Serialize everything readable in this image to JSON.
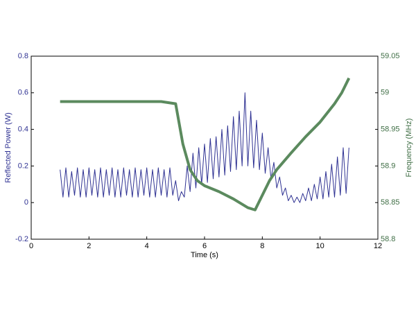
{
  "chart_data": {
    "type": "line",
    "xlabel": "Time (s)",
    "ylabel": "Reflected Power (W)",
    "y2label": "Frequency (MHz)",
    "xlim": [
      0,
      12
    ],
    "xticks": [
      0,
      2,
      4,
      6,
      8,
      10,
      12
    ],
    "ylim": [
      -0.2,
      0.8
    ],
    "yticks": [
      -0.2,
      0,
      0.2,
      0.4,
      0.6,
      0.8
    ],
    "y2lim": [
      58.8,
      59.05
    ],
    "y2ticks": [
      58.8,
      58.85,
      58.9,
      58.95,
      59,
      59.05
    ],
    "series": [
      {
        "color": "#2e3192",
        "x": [
          1.0,
          1.1,
          1.2,
          1.3,
          1.4,
          1.5,
          1.6,
          1.7,
          1.8,
          1.9,
          2.0,
          2.1,
          2.2,
          2.3,
          2.4,
          2.5,
          2.6,
          2.7,
          2.8,
          2.9,
          3.0,
          3.1,
          3.2,
          3.3,
          3.4,
          3.5,
          3.6,
          3.7,
          3.8,
          3.9,
          4.0,
          4.1,
          4.2,
          4.3,
          4.4,
          4.5,
          4.6,
          4.7,
          4.8,
          4.9,
          5.0,
          5.1,
          5.2,
          5.3,
          5.4,
          5.5,
          5.6,
          5.7,
          5.8,
          5.9,
          6.0,
          6.1,
          6.2,
          6.3,
          6.4,
          6.5,
          6.6,
          6.7,
          6.8,
          6.9,
          7.0,
          7.1,
          7.2,
          7.3,
          7.4,
          7.5,
          7.6,
          7.7,
          7.8,
          7.9,
          8.0,
          8.1,
          8.2,
          8.3,
          8.4,
          8.5,
          8.6,
          8.7,
          8.8,
          8.9,
          9.0,
          9.1,
          9.2,
          9.3,
          9.4,
          9.5,
          9.6,
          9.7,
          9.8,
          9.9,
          10.0,
          10.1,
          10.2,
          10.3,
          10.4,
          10.5,
          10.6,
          10.7,
          10.8,
          10.9,
          11.0
        ],
        "values": [
          0.18,
          0.03,
          0.19,
          0.03,
          0.17,
          0.04,
          0.19,
          0.03,
          0.18,
          0.03,
          0.19,
          0.04,
          0.18,
          0.03,
          0.19,
          0.03,
          0.18,
          0.04,
          0.19,
          0.03,
          0.18,
          0.03,
          0.19,
          0.04,
          0.18,
          0.03,
          0.19,
          0.03,
          0.18,
          0.04,
          0.19,
          0.03,
          0.18,
          0.03,
          0.19,
          0.04,
          0.18,
          0.03,
          0.19,
          0.04,
          0.12,
          0.01,
          0.06,
          0.03,
          0.2,
          0.06,
          0.27,
          0.08,
          0.3,
          0.1,
          0.32,
          0.11,
          0.35,
          0.13,
          0.36,
          0.14,
          0.4,
          0.15,
          0.42,
          0.17,
          0.47,
          0.18,
          0.5,
          0.2,
          0.6,
          0.2,
          0.5,
          0.19,
          0.45,
          0.18,
          0.38,
          0.16,
          0.3,
          0.13,
          0.22,
          0.08,
          0.14,
          0.04,
          0.08,
          0.01,
          0.04,
          0.0,
          0.03,
          0.0,
          0.05,
          0.01,
          0.08,
          0.01,
          0.1,
          0.02,
          0.14,
          0.02,
          0.17,
          0.03,
          0.21,
          0.03,
          0.25,
          0.04,
          0.3,
          0.05,
          0.3
        ]
      },
      {
        "color": "#5b8a5e",
        "axis": "y2",
        "x": [
          1,
          1.5,
          2,
          2.5,
          3,
          3.5,
          4,
          4.5,
          5,
          5.25,
          5.5,
          5.75,
          6,
          6.5,
          7,
          7.5,
          7.75,
          8,
          8.25,
          8.5,
          9,
          9.5,
          10,
          10.5,
          10.75,
          11
        ],
        "values": [
          58.988,
          58.988,
          58.988,
          58.988,
          58.988,
          58.988,
          58.988,
          58.988,
          58.985,
          58.93,
          58.895,
          58.88,
          58.873,
          58.865,
          58.855,
          58.843,
          58.84,
          58.86,
          58.88,
          58.895,
          58.918,
          58.94,
          58.96,
          58.985,
          59.0,
          59.02
        ]
      }
    ]
  }
}
